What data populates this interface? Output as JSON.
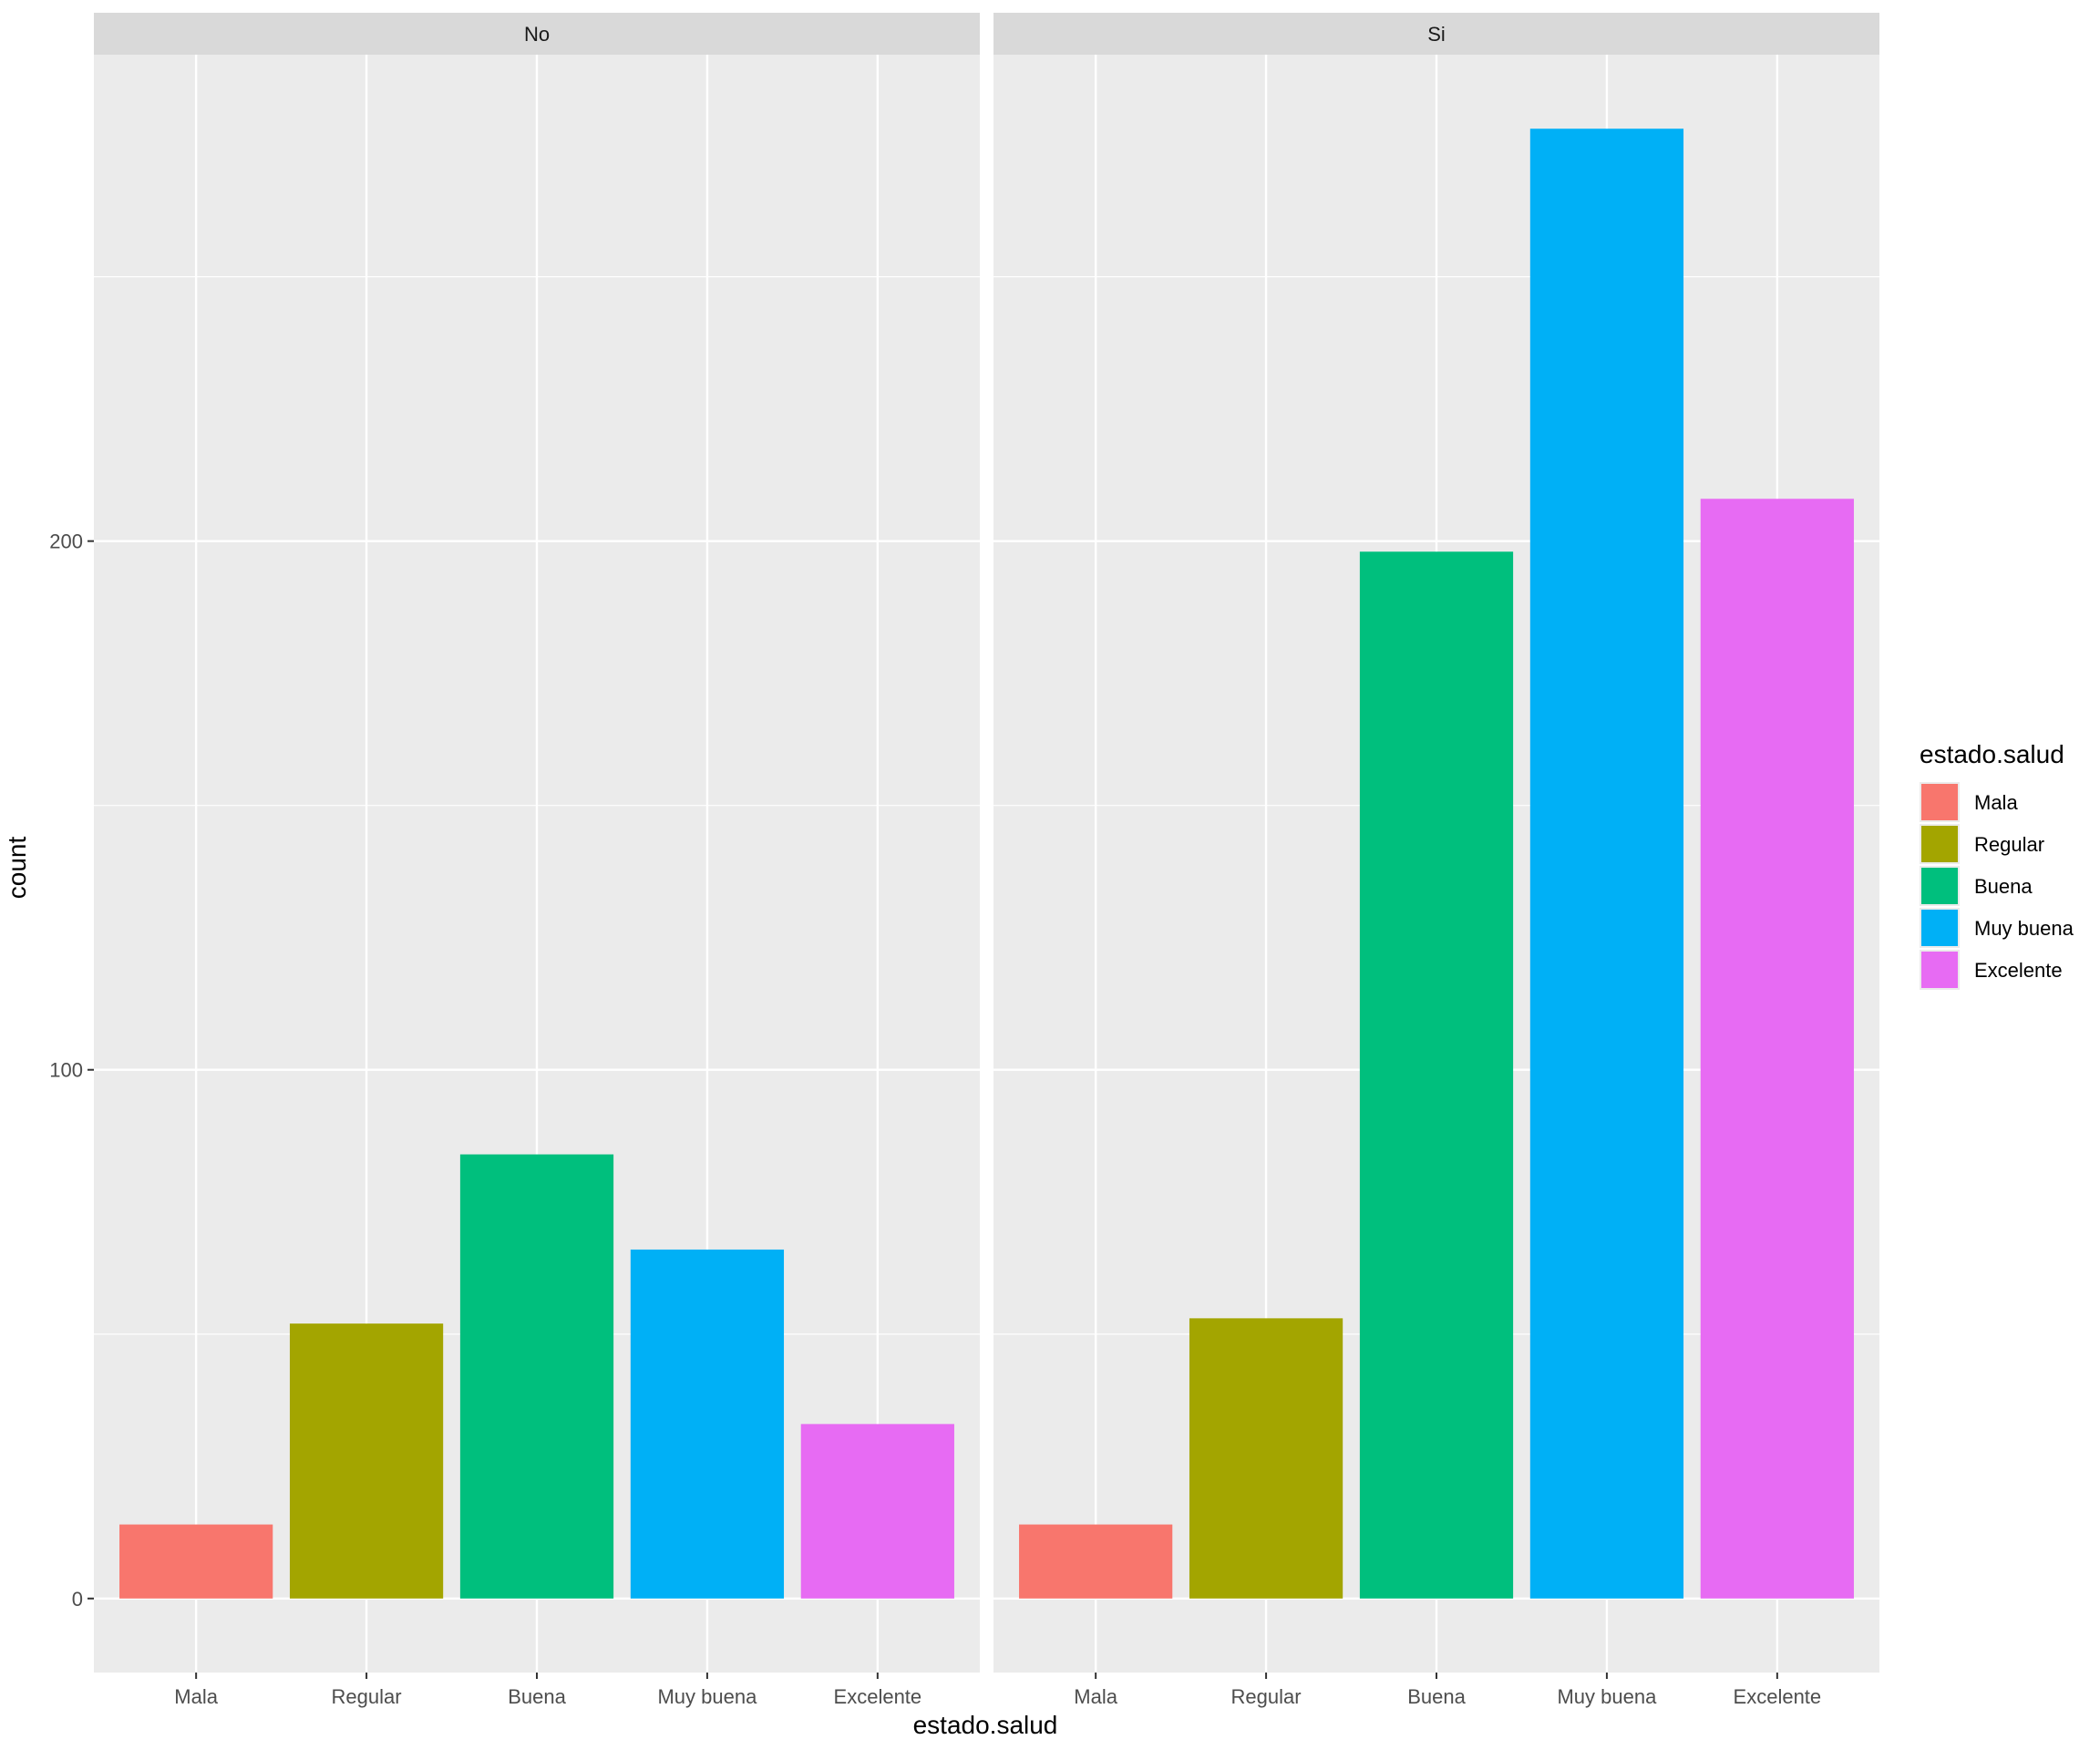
{
  "chart_data": {
    "type": "bar",
    "facet_labels": [
      "No",
      "Si"
    ],
    "categories": [
      "Mala",
      "Regular",
      "Buena",
      "Muy buena",
      "Excelente"
    ],
    "panels": [
      {
        "facet": "No",
        "values": [
          14,
          52,
          84,
          66,
          33
        ]
      },
      {
        "facet": "Si",
        "values": [
          14,
          53,
          198,
          278,
          208
        ]
      }
    ],
    "xlabel": "estado.salud",
    "ylabel": "count",
    "y_ticks": [
      0,
      100,
      200
    ],
    "ylim": [
      -14,
      292
    ],
    "grid": true,
    "legend": {
      "title": "estado.salud",
      "placement": "right",
      "entries": [
        "Mala",
        "Regular",
        "Buena",
        "Muy buena",
        "Excelente"
      ]
    },
    "colors": [
      "#F8766D",
      "#A3A500",
      "#00BF7D",
      "#00B0F6",
      "#E76BF3"
    ],
    "panel_background": "#EBEBEB",
    "strip_background": "#D9D9D9",
    "grid_color": "#FFFFFF"
  }
}
